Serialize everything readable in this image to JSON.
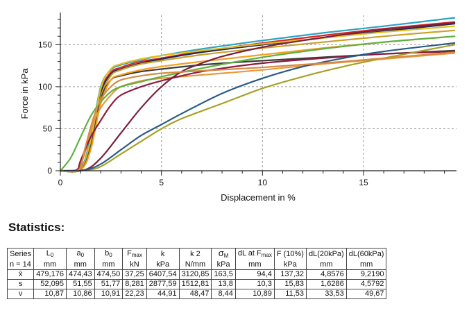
{
  "chart_data": {
    "type": "line",
    "xlabel": "Displacement in %",
    "ylabel": "Force in kPa",
    "xlim": [
      0,
      19.6
    ],
    "ylim": [
      0,
      185
    ],
    "xticks": [
      0,
      5,
      10,
      15
    ],
    "yticks": [
      0,
      50,
      100,
      150
    ],
    "grid": true,
    "series": [
      {
        "color": "#2aa3c4",
        "x": [
          0,
          1,
          1.5,
          2,
          2.5,
          3,
          4,
          5,
          7,
          10,
          13,
          16,
          19.5
        ],
        "y": [
          0,
          3,
          40,
          100,
          120,
          126,
          132,
          137,
          145,
          155,
          164,
          172,
          182
        ]
      },
      {
        "color": "#d62728",
        "x": [
          0,
          1,
          1.5,
          2,
          2.5,
          3,
          4,
          5,
          7,
          10,
          13,
          16,
          19.5
        ],
        "y": [
          0,
          2,
          35,
          95,
          117,
          123,
          130,
          134,
          142,
          152,
          161,
          169,
          177
        ]
      },
      {
        "color": "#1f2a5a",
        "x": [
          0,
          1,
          1.5,
          2,
          2.5,
          3,
          4,
          5,
          7,
          10,
          13,
          16,
          19.5
        ],
        "y": [
          0,
          2,
          32,
          92,
          115,
          121,
          128,
          133,
          141,
          150,
          158,
          166,
          175
        ]
      },
      {
        "color": "#e0c020",
        "x": [
          0,
          1,
          1.5,
          2,
          2.5,
          3,
          4,
          5,
          7,
          10,
          13,
          16,
          19.5
        ],
        "y": [
          0,
          2,
          36,
          98,
          121,
          127,
          133,
          137,
          143,
          151,
          158,
          165,
          172
        ]
      },
      {
        "color": "#c9a12a",
        "x": [
          0,
          1,
          1.5,
          2,
          2.5,
          3,
          4,
          5,
          7,
          10,
          13,
          16,
          19.5
        ],
        "y": [
          0,
          2,
          30,
          88,
          113,
          120,
          127,
          131,
          138,
          146,
          153,
          160,
          167
        ]
      },
      {
        "color": "#3c3c3c",
        "x": [
          0,
          1,
          1.5,
          2,
          2.5,
          3,
          4,
          5,
          7,
          10,
          13,
          16,
          19.5
        ],
        "y": [
          0,
          1,
          28,
          85,
          108,
          113,
          118,
          121,
          126,
          131,
          135,
          139,
          143
        ]
      },
      {
        "color": "#f4a020",
        "x": [
          0,
          1,
          1.5,
          2,
          2.5,
          3,
          4,
          5,
          7,
          10,
          13,
          16,
          19.5
        ],
        "y": [
          0,
          1,
          25,
          80,
          108,
          114,
          120,
          124,
          130,
          138,
          146,
          153,
          160
        ]
      },
      {
        "color": "#e69a3c",
        "x": [
          0,
          0.8,
          1.2,
          1.6,
          2,
          2.5,
          3,
          4,
          5,
          7,
          10,
          13,
          16,
          19.5
        ],
        "y": [
          0,
          1,
          20,
          55,
          75,
          90,
          100,
          107,
          110,
          114,
          120,
          127,
          133,
          140
        ]
      },
      {
        "color": "#60b040",
        "x": [
          0,
          0.5,
          1,
          1.5,
          2,
          2.5,
          3,
          4,
          5,
          7,
          10,
          13,
          16,
          19.5
        ],
        "y": [
          0,
          15,
          40,
          65,
          82,
          94,
          100,
          106,
          112,
          122,
          135,
          145,
          153,
          160
        ]
      },
      {
        "color": "#8c1c3c",
        "x": [
          0,
          0.8,
          1,
          1.5,
          2,
          2.5,
          3,
          4,
          5,
          7,
          10,
          13,
          16,
          19.5
        ],
        "y": [
          0,
          1,
          12,
          40,
          60,
          78,
          90,
          100,
          107,
          118,
          128,
          134,
          139,
          142
        ]
      },
      {
        "color": "#7a2040",
        "x": [
          0,
          1.2,
          2,
          3,
          4,
          5,
          6,
          7,
          8,
          10,
          12,
          14,
          16,
          19.5
        ],
        "y": [
          0,
          1,
          15,
          45,
          75,
          100,
          118,
          128,
          136,
          147,
          155,
          162,
          168,
          176
        ]
      },
      {
        "color": "#a8a028",
        "x": [
          0,
          1.3,
          2,
          3,
          4,
          5,
          6,
          8,
          10,
          12,
          14,
          16,
          19.5
        ],
        "y": [
          0,
          1,
          5,
          20,
          35,
          50,
          62,
          80,
          98,
          112,
          124,
          134,
          150
        ]
      },
      {
        "color": "#2a5a88",
        "x": [
          0,
          1.2,
          2,
          3,
          4,
          5,
          6,
          8,
          10,
          12,
          14,
          16,
          19.5
        ],
        "y": [
          0,
          1,
          8,
          25,
          42,
          55,
          68,
          92,
          110,
          124,
          134,
          142,
          152
        ]
      },
      {
        "color": "#d88a44",
        "x": [
          0,
          0.9,
          1.2,
          1.6,
          2,
          2.5,
          3,
          4,
          5,
          7,
          10,
          13,
          16,
          19.5
        ],
        "y": [
          0,
          1,
          25,
          60,
          85,
          100,
          108,
          113,
          116,
          119,
          123,
          128,
          134,
          141
        ]
      }
    ]
  },
  "statistics": {
    "title": "Statistics:",
    "col_heads": [
      "Series",
      "L",
      "a",
      "b",
      "F",
      "k",
      "k 2",
      "σ",
      "dL at F",
      "F (10%)",
      "dL(20kPa)",
      "dL(60kPa)"
    ],
    "col_subs": [
      "",
      "0",
      "0",
      "0",
      "max",
      "",
      "",
      "M",
      "max",
      "",
      "",
      ""
    ],
    "units": [
      "n = 14",
      "mm",
      "mm",
      "mm",
      "kN",
      "kPa",
      "N/mm",
      "kPa",
      "mm",
      "kPa",
      "mm",
      "mm"
    ],
    "rows": [
      {
        "label": "x̄",
        "values": [
          "479,176",
          "474,43",
          "474,50",
          "37,25",
          "6407,54",
          "3120,85",
          "163,5",
          "94,4",
          "137,32",
          "4,8576",
          "9,2190"
        ]
      },
      {
        "label": "s",
        "values": [
          "52,095",
          "51,55",
          "51,77",
          "8,281",
          "2877,59",
          "1512,81",
          "13,8",
          "10,3",
          "15,83",
          "1,6286",
          "4,5792"
        ]
      },
      {
        "label": "ν",
        "values": [
          "10,87",
          "10,86",
          "10,91",
          "22,23",
          "44,91",
          "48,47",
          "8,44",
          "10,89",
          "11,53",
          "33,53",
          "49,67"
        ]
      }
    ]
  }
}
